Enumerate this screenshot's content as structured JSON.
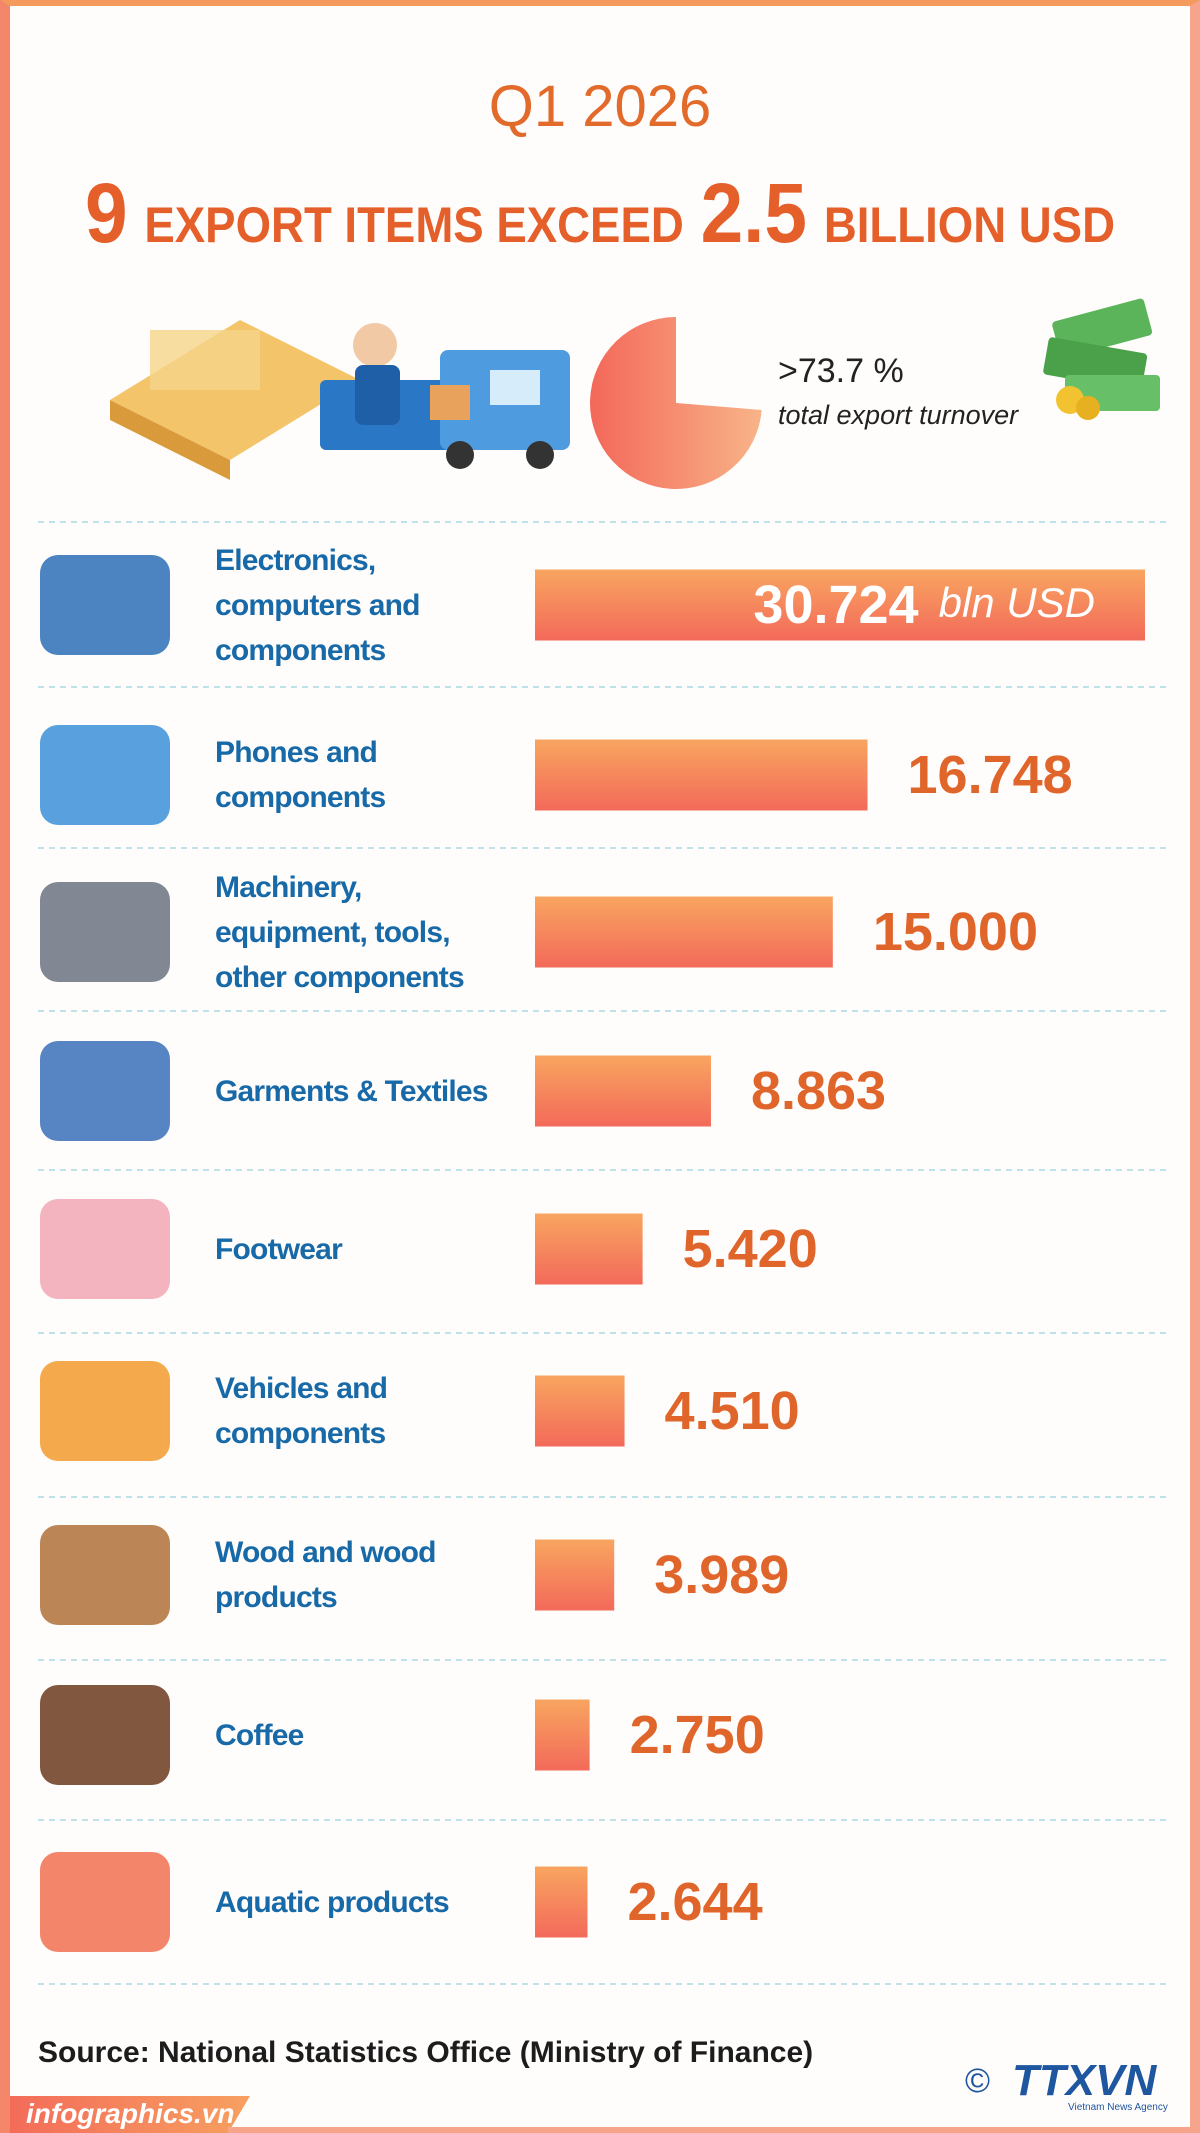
{
  "chart_data": {
    "type": "bar",
    "subtitle": "Q1 2026",
    "title_parts": [
      "9",
      "EXPORT ITEMS EXCEED",
      "2.5",
      "BILLION USD"
    ],
    "highlight": {
      "value": 73.7,
      "label": ">73.7 %",
      "note": "total export turnover",
      "color": "#f47b5a"
    },
    "categories": [
      "Electronics, computers and components",
      "Phones and components",
      "Machinery, equipment, tools, other components",
      "Garments & Textiles",
      "Footwear",
      "Vehicles and components",
      "Wood and wood products",
      "Coffee",
      "Aquatic products"
    ],
    "values": [
      30.724,
      16.748,
      15.0,
      8.863,
      5.42,
      4.51,
      3.989,
      2.75,
      2.644
    ],
    "value_labels": [
      "30.724",
      "16.748",
      "15.000",
      "8.863",
      "5.420",
      "4.510",
      "3.989",
      "2.750",
      "2.644"
    ],
    "unit": "bln USD",
    "color": "#f47b5a",
    "source": "Source: National Statistics Office (Ministry of Finance)"
  },
  "footer": {
    "site": "infographics.vn",
    "copyright": "©",
    "agency": "TTXVN",
    "agency_sub": "Vietnam News Agency"
  }
}
